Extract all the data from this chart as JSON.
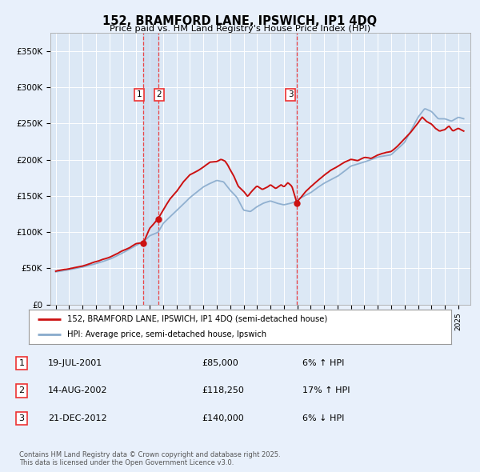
{
  "title": "152, BRAMFORD LANE, IPSWICH, IP1 4DQ",
  "subtitle": "Price paid vs. HM Land Registry's House Price Index (HPI)",
  "background_color": "#e8f0fb",
  "plot_bg_color": "#dce8f5",
  "vline_shade_color": "#c8d8ee",
  "ylim": [
    0,
    375000
  ],
  "yticks": [
    0,
    50000,
    100000,
    150000,
    200000,
    250000,
    300000,
    350000
  ],
  "ytick_labels": [
    "£0",
    "£50K",
    "£100K",
    "£150K",
    "£200K",
    "£250K",
    "£300K",
    "£350K"
  ],
  "sale_year_nums": [
    2001.54,
    2002.62,
    2012.97
  ],
  "sale_prices": [
    85000,
    118250,
    140000
  ],
  "sale_labels": [
    "1",
    "2",
    "3"
  ],
  "vline_color": "#ee3333",
  "legend_line1": "152, BRAMFORD LANE, IPSWICH, IP1 4DQ (semi-detached house)",
  "legend_line2": "HPI: Average price, semi-detached house, Ipswich",
  "table_data": [
    [
      "1",
      "19-JUL-2001",
      "£85,000",
      "6% ↑ HPI"
    ],
    [
      "2",
      "14-AUG-2002",
      "£118,250",
      "17% ↑ HPI"
    ],
    [
      "3",
      "21-DEC-2012",
      "£140,000",
      "6% ↓ HPI"
    ]
  ],
  "footer": "Contains HM Land Registry data © Crown copyright and database right 2025.\nThis data is licensed under the Open Government Licence v3.0.",
  "red_line_color": "#cc1111",
  "blue_line_color": "#88aacc",
  "figsize": [
    6.0,
    5.9
  ],
  "dpi": 100
}
